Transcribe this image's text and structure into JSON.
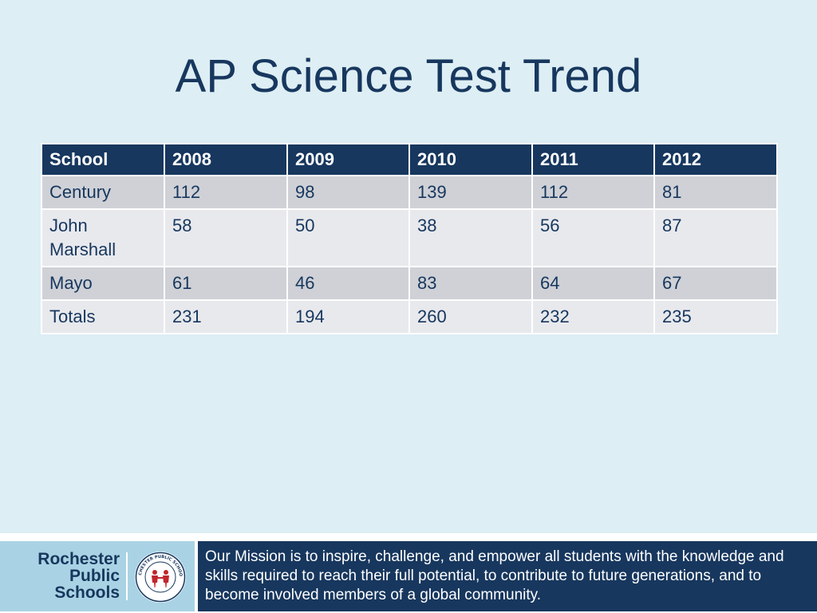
{
  "slide": {
    "title": "AP Science Test Trend"
  },
  "table": {
    "headers": [
      "School",
      "2008",
      "2009",
      "2010",
      "2011",
      "2012"
    ],
    "rows": [
      [
        "Century",
        "112",
        "98",
        "139",
        "112",
        "81"
      ],
      [
        "John Marshall",
        "58",
        "50",
        "38",
        "56",
        "87"
      ],
      [
        "Mayo",
        "61",
        "46",
        "83",
        "64",
        "67"
      ],
      [
        "Totals",
        "231",
        "194",
        "260",
        "232",
        "235"
      ]
    ]
  },
  "footer": {
    "logo_lines": [
      "Rochester",
      "Public",
      "Schools"
    ],
    "seal_text": "ROCHESTER PUBLIC SCHOOLS",
    "mission": "Our Mission is to inspire, challenge, and empower all students with the knowledge and skills required to reach their full potential, to contribute to future generations, and to become involved members of a global community."
  },
  "colors": {
    "background": "#ddeef4",
    "navy": "#17375e",
    "row_odd": "#cfd1d6",
    "row_even": "#e8e9ed",
    "logo_bg": "#a9d3e4",
    "seal_accent": "#c0272d"
  }
}
